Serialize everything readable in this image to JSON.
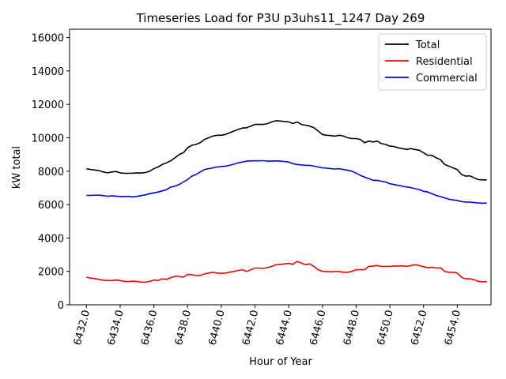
{
  "chart_data": {
    "type": "line",
    "title": "Timeseries Load for P3U p3uhs11_1247  Day 269",
    "xlabel": "Hour of Year",
    "ylabel": "kW total",
    "xlim": [
      6431.0,
      6456.0
    ],
    "ylim": [
      0,
      16500
    ],
    "x_ticks": [
      6432,
      6434,
      6436,
      6438,
      6440,
      6442,
      6444,
      6446,
      6448,
      6450,
      6452,
      6454
    ],
    "x_tick_labels": [
      "6432.0",
      "6434.0",
      "6436.0",
      "6438.0",
      "6440.0",
      "6442.0",
      "6444.0",
      "6446.0",
      "6448.0",
      "6450.0",
      "6452.0",
      "6454.0"
    ],
    "y_ticks": [
      0,
      2000,
      4000,
      6000,
      8000,
      10000,
      12000,
      14000,
      16000
    ],
    "y_tick_labels": [
      "0",
      "2000",
      "4000",
      "6000",
      "8000",
      "10000",
      "12000",
      "14000",
      "16000"
    ],
    "legend_position": "top-right",
    "x": [
      6432.0,
      6432.25,
      6432.5,
      6432.75,
      6433.0,
      6433.25,
      6433.5,
      6433.75,
      6434.0,
      6434.25,
      6434.5,
      6434.75,
      6435.0,
      6435.25,
      6435.5,
      6435.75,
      6436.0,
      6436.25,
      6436.5,
      6436.75,
      6437.0,
      6437.25,
      6437.5,
      6437.75,
      6438.0,
      6438.25,
      6438.5,
      6438.75,
      6439.0,
      6439.25,
      6439.5,
      6439.75,
      6440.0,
      6440.25,
      6440.5,
      6440.75,
      6441.0,
      6441.25,
      6441.5,
      6441.75,
      6442.0,
      6442.25,
      6442.5,
      6442.75,
      6443.0,
      6443.25,
      6443.5,
      6443.75,
      6444.0,
      6444.25,
      6444.5,
      6444.75,
      6445.0,
      6445.25,
      6445.5,
      6445.75,
      6446.0,
      6446.25,
      6446.5,
      6446.75,
      6447.0,
      6447.25,
      6447.5,
      6447.75,
      6448.0,
      6448.25,
      6448.5,
      6448.75,
      6449.0,
      6449.25,
      6449.5,
      6449.75,
      6450.0,
      6450.25,
      6450.5,
      6450.75,
      6451.0,
      6451.25,
      6451.5,
      6451.75,
      6452.0,
      6452.25,
      6452.5,
      6452.75,
      6453.0,
      6453.25,
      6453.5,
      6453.75,
      6454.0,
      6454.25,
      6454.5,
      6454.75,
      6455.0,
      6455.25,
      6455.5,
      6455.75
    ],
    "series": [
      {
        "name": "Total",
        "color": "#000000",
        "values": [
          8150,
          8100,
          8070,
          8030,
          7950,
          7900,
          7950,
          7980,
          7900,
          7870,
          7870,
          7880,
          7900,
          7890,
          7920,
          8000,
          8150,
          8250,
          8400,
          8500,
          8620,
          8800,
          9000,
          9100,
          9400,
          9550,
          9600,
          9700,
          9900,
          10000,
          10100,
          10150,
          10150,
          10200,
          10300,
          10400,
          10500,
          10580,
          10600,
          10700,
          10800,
          10800,
          10800,
          10850,
          10950,
          11020,
          11000,
          10980,
          10950,
          10850,
          10950,
          10800,
          10750,
          10700,
          10600,
          10400,
          10200,
          10150,
          10130,
          10100,
          10150,
          10100,
          10000,
          9950,
          9950,
          9900,
          9700,
          9800,
          9750,
          9800,
          9650,
          9600,
          9500,
          9480,
          9400,
          9350,
          9300,
          9350,
          9300,
          9250,
          9100,
          8950,
          8950,
          8800,
          8700,
          8400,
          8300,
          8200,
          8100,
          7800,
          7700,
          7720,
          7600,
          7500,
          7480,
          7480
        ]
      },
      {
        "name": "Residential",
        "color": "#ff0000",
        "values": [
          1650,
          1600,
          1570,
          1520,
          1470,
          1450,
          1450,
          1480,
          1450,
          1400,
          1390,
          1420,
          1400,
          1350,
          1350,
          1400,
          1480,
          1450,
          1550,
          1520,
          1620,
          1700,
          1700,
          1650,
          1820,
          1800,
          1750,
          1750,
          1850,
          1900,
          1950,
          1900,
          1880,
          1900,
          1950,
          2000,
          2050,
          2100,
          2000,
          2100,
          2200,
          2200,
          2180,
          2230,
          2300,
          2400,
          2420,
          2450,
          2480,
          2420,
          2600,
          2500,
          2400,
          2450,
          2300,
          2100,
          2000,
          2000,
          1980,
          2000,
          2000,
          1950,
          1950,
          2000,
          2100,
          2100,
          2100,
          2300,
          2320,
          2350,
          2300,
          2300,
          2300,
          2320,
          2320,
          2330,
          2300,
          2350,
          2400,
          2350,
          2280,
          2220,
          2250,
          2200,
          2220,
          2000,
          1950,
          1950,
          1900,
          1650,
          1550,
          1560,
          1500,
          1400,
          1380,
          1380
        ]
      },
      {
        "name": "Commercial",
        "color": "#0000ff",
        "values": [
          6550,
          6550,
          6560,
          6560,
          6540,
          6500,
          6520,
          6510,
          6470,
          6480,
          6490,
          6460,
          6490,
          6540,
          6580,
          6650,
          6700,
          6750,
          6820,
          6900,
          7050,
          7100,
          7200,
          7350,
          7500,
          7700,
          7800,
          7950,
          8100,
          8150,
          8200,
          8250,
          8280,
          8300,
          8350,
          8420,
          8500,
          8550,
          8600,
          8620,
          8620,
          8620,
          8630,
          8600,
          8600,
          8620,
          8600,
          8580,
          8550,
          8450,
          8400,
          8380,
          8350,
          8350,
          8300,
          8250,
          8200,
          8180,
          8150,
          8130,
          8150,
          8100,
          8050,
          8000,
          7880,
          7750,
          7650,
          7550,
          7450,
          7450,
          7400,
          7350,
          7250,
          7200,
          7150,
          7100,
          7050,
          7020,
          6950,
          6900,
          6800,
          6750,
          6650,
          6550,
          6480,
          6400,
          6320,
          6280,
          6250,
          6180,
          6150,
          6150,
          6120,
          6100,
          6080,
          6100
        ]
      }
    ]
  }
}
